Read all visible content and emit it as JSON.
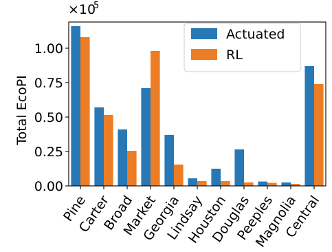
{
  "chart_data": {
    "type": "bar",
    "title": "",
    "xlabel": "",
    "ylabel": "Total EcoPI",
    "y_scale_label": "×10",
    "y_scale_exponent": "5",
    "ylim": [
      0,
      1.2
    ],
    "yticks": [
      0.0,
      0.25,
      0.5,
      0.75,
      1.0
    ],
    "ytick_labels": [
      "0.00",
      "0.25",
      "0.50",
      "0.75",
      "1.00"
    ],
    "grid": false,
    "legend_position": "top-right",
    "categories": [
      "Pine",
      "Carter",
      "Broad",
      "Market",
      "Georgia",
      "Lindsay",
      "Houston",
      "Douglas",
      "Peeples",
      "Magnolia",
      "Central"
    ],
    "series": [
      {
        "name": "Actuated",
        "color": "#2878b5",
        "values": [
          1.16,
          0.57,
          0.41,
          0.71,
          0.37,
          0.055,
          0.125,
          0.265,
          0.032,
          0.025,
          0.87
        ]
      },
      {
        "name": "RL",
        "color": "#ed7d24",
        "values": [
          1.08,
          0.515,
          0.255,
          0.98,
          0.155,
          0.035,
          0.035,
          0.025,
          0.022,
          0.015,
          0.74
        ]
      }
    ]
  }
}
